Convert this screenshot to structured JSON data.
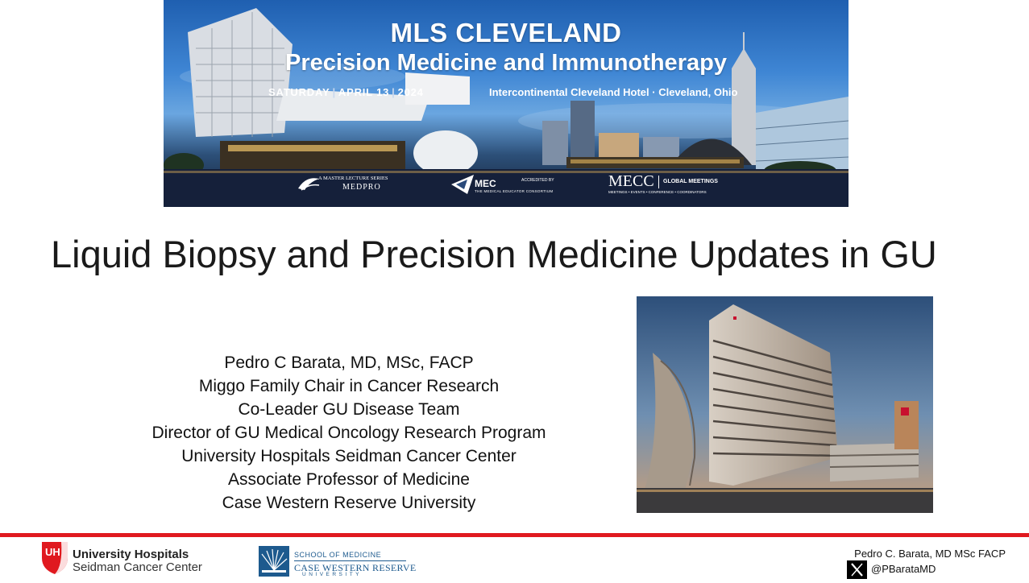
{
  "banner": {
    "event": "MLS CLEVELAND",
    "subtitle": "Precision Medicine and Immunotherapy",
    "date_day": "SATURDAY",
    "date_month": "APRIL 13",
    "date_year": "2024",
    "venue": "Intercontinental Cleveland Hotel · Cleveland, Ohio",
    "logos": {
      "medpro_series": "A MASTER LECTURE SERIES",
      "medpro_name": "MEDPRO",
      "mec_name": "MEC",
      "mec_accredited": "ACCREDITED BY",
      "mec_full": "THE MEDICAL EDUCATOR CONSORTIUM",
      "mecc_name": "MECC",
      "mecc_tag": "GLOBAL MEETINGS",
      "mecc_services": "MEETINGS • EVENTS • CONFERENCE • COORDINATORS"
    }
  },
  "slide": {
    "title": "Liquid Biopsy and Precision Medicine Updates in GU",
    "speaker_lines": [
      "Pedro C Barata, MD, MSc, FACP",
      "Miggo Family Chair in Cancer Research",
      "Co-Leader GU Disease Team",
      "Director of GU Medical Oncology Research Program",
      "University Hospitals Seidman Cancer Center",
      "Associate Professor of Medicine",
      "Case Western Reserve University"
    ]
  },
  "footer": {
    "uh_name": "University Hospitals",
    "uh_center": "Seidman Cancer Center",
    "uh_mark": "UH",
    "cwru_school": "SCHOOL OF MEDICINE",
    "cwru_name": "CASE WESTERN RESERVE",
    "cwru_university": "UNIVERSITY",
    "presenter": "Pedro C. Barata, MD MSc FACP",
    "social_icon": "x-icon",
    "handle": "@PBarataMD"
  },
  "colors": {
    "accent_red": "#e0191f",
    "cwru_blue": "#1d5a8e",
    "banner_blue": "#2f6fc0"
  }
}
